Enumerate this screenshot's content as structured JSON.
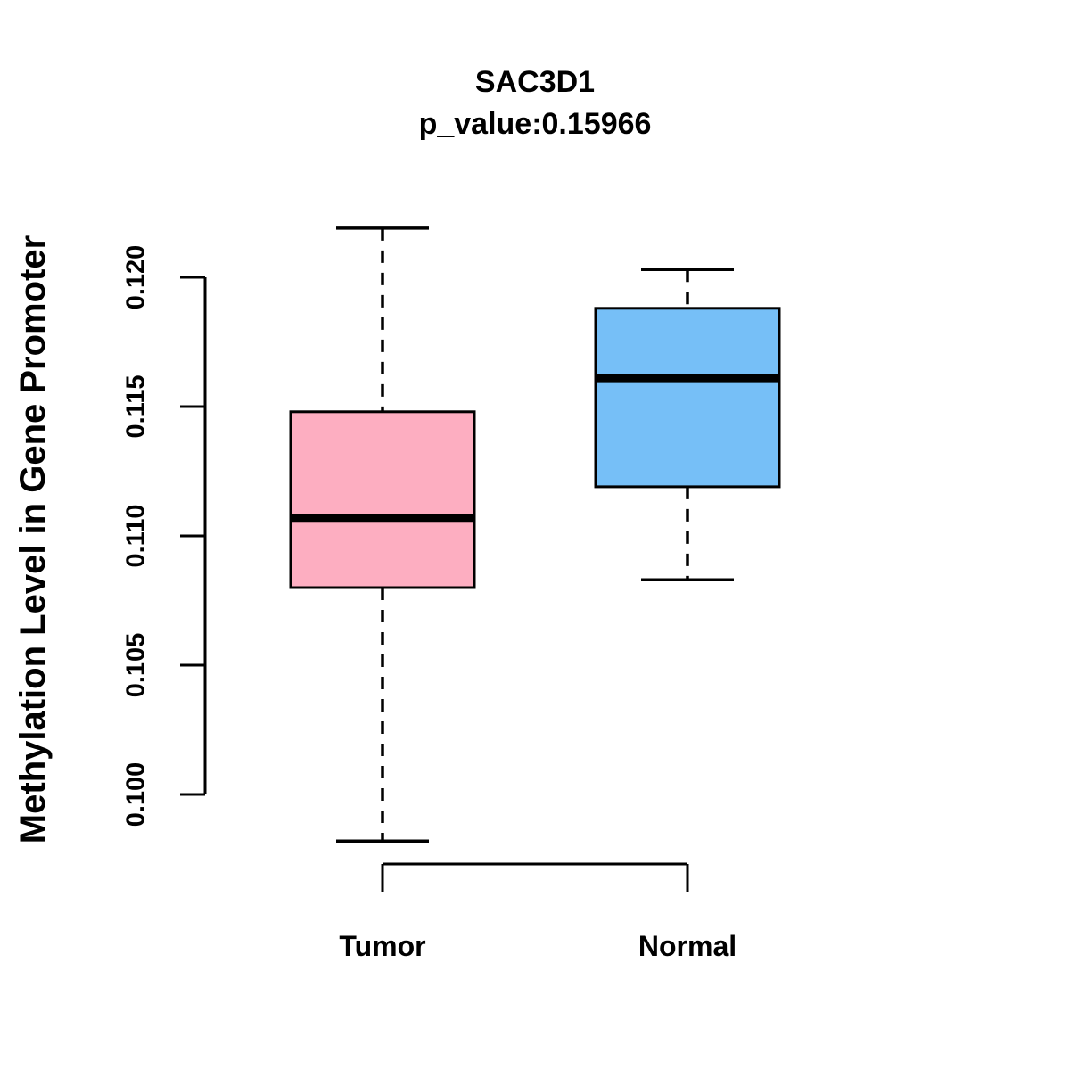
{
  "title": "SAC3D1",
  "subtitle": "p_value:0.15966",
  "chart_data": {
    "type": "boxplot",
    "title": "SAC3D1",
    "subtitle": "p_value:0.15966",
    "ylabel": "Methylation Level in Gene Promoter",
    "xlabel": "",
    "categories": [
      "Tumor",
      "Normal"
    ],
    "y_ticks": [
      "0.100",
      "0.105",
      "0.110",
      "0.115",
      "0.120"
    ],
    "ylim": [
      0.1,
      0.12
    ],
    "grid": false,
    "legend": "none",
    "colors": {
      "tumor_fill": "#FDAEC1",
      "normal_fill": "#76BFF7",
      "stroke": "#000000",
      "background": "#FFFFFF"
    },
    "series": [
      {
        "name": "Tumor",
        "color": "#FDAEC1",
        "whisker_low": 0.0982,
        "q1": 0.108,
        "median": 0.1107,
        "q3": 0.1148,
        "whisker_high": 0.1219
      },
      {
        "name": "Normal",
        "color": "#76BFF7",
        "whisker_low": 0.1083,
        "q1": 0.1119,
        "median": 0.1161,
        "q3": 0.1188,
        "whisker_high": 0.1203
      }
    ]
  }
}
